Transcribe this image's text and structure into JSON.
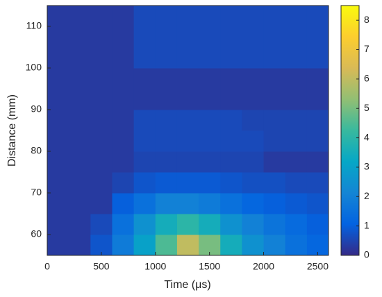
{
  "chart_data": {
    "type": "heatmap",
    "xlabel": "Time (μs)",
    "ylabel": "Distance (mm)",
    "x": [
      100,
      300,
      500,
      700,
      900,
      1100,
      1300,
      1500,
      1700,
      1900,
      2100,
      2300,
      2500
    ],
    "y": [
      57.5,
      62.5,
      67.5,
      72.5,
      77.5,
      82.5,
      87.5,
      92.5,
      97.5,
      102.5,
      107.5,
      112.5
    ],
    "z": [
      [
        0.3,
        0.3,
        0.8,
        1.8,
        3,
        4.5,
        6,
        5,
        3.5,
        2.5,
        2,
        1.5,
        1.2
      ],
      [
        0.3,
        0.3,
        0.6,
        1.5,
        2.5,
        3.5,
        4,
        3.5,
        2.5,
        2,
        1.6,
        1.3,
        1
      ],
      [
        0.3,
        0.3,
        0.3,
        1,
        1.5,
        2,
        2,
        1.8,
        1.5,
        1.2,
        1,
        0.9,
        0.8
      ],
      [
        0.3,
        0.3,
        0.3,
        0.5,
        0.8,
        0.9,
        0.9,
        0.9,
        0.8,
        0.7,
        0.7,
        0.6,
        0.6
      ],
      [
        0.3,
        0.3,
        0.3,
        0.3,
        0.5,
        0.5,
        0.5,
        0.5,
        0.5,
        0.5,
        0.3,
        0.3,
        0.3
      ],
      [
        0.3,
        0.3,
        0.3,
        0.3,
        0.6,
        0.6,
        0.6,
        0.6,
        0.6,
        0.6,
        0.5,
        0.5,
        0.5
      ],
      [
        0.3,
        0.3,
        0.3,
        0.3,
        0.6,
        0.6,
        0.6,
        0.6,
        0.6,
        0.5,
        0.5,
        0.5,
        0.5
      ],
      [
        0.3,
        0.3,
        0.3,
        0.3,
        0.3,
        0.3,
        0.3,
        0.3,
        0.3,
        0.3,
        0.3,
        0.3,
        0.3
      ],
      [
        0.3,
        0.3,
        0.3,
        0.3,
        0.3,
        0.3,
        0.3,
        0.3,
        0.3,
        0.3,
        0.3,
        0.3,
        0.3
      ],
      [
        0.3,
        0.3,
        0.3,
        0.3,
        0.6,
        0.6,
        0.6,
        0.6,
        0.6,
        0.6,
        0.6,
        0.6,
        0.6
      ],
      [
        0.3,
        0.3,
        0.3,
        0.3,
        0.6,
        0.6,
        0.6,
        0.6,
        0.6,
        0.6,
        0.6,
        0.6,
        0.6
      ],
      [
        0.3,
        0.3,
        0.3,
        0.3,
        0.6,
        0.6,
        0.6,
        0.6,
        0.6,
        0.6,
        0.6,
        0.6,
        0.6
      ]
    ],
    "xlim": [
      0,
      2600
    ],
    "xticks": [
      0,
      500,
      1000,
      1500,
      2000,
      2500
    ],
    "ylim": [
      55,
      115
    ],
    "yticks": [
      60,
      70,
      80,
      90,
      100,
      110
    ],
    "clim": [
      0,
      8.5
    ],
    "cticks": [
      0,
      1,
      2,
      3,
      4,
      5,
      6,
      7,
      8
    ],
    "colormap": [
      "#352a87",
      "#0363e1",
      "#1485d4",
      "#06a7c6",
      "#38b99e",
      "#92bf73",
      "#d9ba56",
      "#fcce2e",
      "#f9fb0e"
    ]
  }
}
